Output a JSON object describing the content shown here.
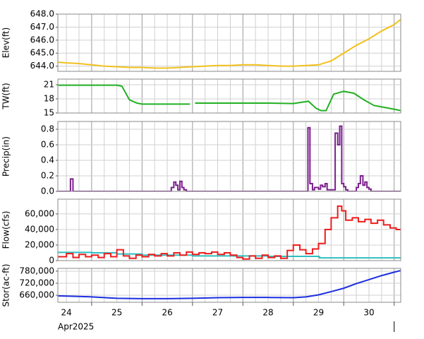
{
  "x_axis": {
    "xlim": [
      24.33,
      31.13
    ],
    "xticks": [
      {
        "value": 24.5,
        "label": "24"
      },
      {
        "value": 25.5,
        "label": "25"
      },
      {
        "value": 26.5,
        "label": "26"
      },
      {
        "value": 27.5,
        "label": "27"
      },
      {
        "value": 28.5,
        "label": "28"
      },
      {
        "value": 29.5,
        "label": "29"
      },
      {
        "value": 30.5,
        "label": "30"
      }
    ],
    "label": "Apr2025",
    "xgrid_major": [
      25,
      26,
      27,
      28,
      29,
      30,
      31
    ],
    "xgrid_minor": [
      24.5,
      24.75,
      25.25,
      25.5,
      25.75,
      26.25,
      26.5,
      26.75,
      27.25,
      27.5,
      27.75,
      28.25,
      28.5,
      28.75,
      29.25,
      29.5,
      29.75,
      30.25,
      30.5,
      30.75
    ]
  },
  "chart_data": [
    {
      "type": "line",
      "ylabel": "Elev(ft)",
      "ylim": [
        643.6,
        648.0
      ],
      "yticks": [
        {
          "value": 644,
          "label": "644.0"
        },
        {
          "value": 645,
          "label": "645.0"
        },
        {
          "value": 646,
          "label": "646.0"
        },
        {
          "value": 647,
          "label": "647.0"
        },
        {
          "value": 648,
          "label": "648.0"
        }
      ],
      "series": [
        {
          "color": "#f2c01e",
          "x": [
            24.33,
            24.5,
            24.75,
            25,
            25.25,
            25.5,
            25.75,
            26,
            26.25,
            26.5,
            26.75,
            27,
            27.25,
            27.5,
            27.75,
            28,
            28.25,
            28.5,
            28.75,
            29,
            29.25,
            29.5,
            29.75,
            30,
            30.25,
            30.5,
            30.75,
            31,
            31.13
          ],
          "values": [
            644.3,
            644.25,
            644.2,
            644.1,
            644.0,
            643.95,
            643.9,
            643.9,
            643.85,
            643.85,
            643.9,
            643.95,
            644.0,
            644.05,
            644.05,
            644.1,
            644.1,
            644.05,
            644.0,
            644.0,
            644.05,
            644.1,
            644.4,
            645.0,
            645.6,
            646.1,
            646.7,
            647.2,
            647.6
          ]
        }
      ]
    },
    {
      "type": "line",
      "ylabel": "TW(ft)",
      "ylim": [
        15,
        22.2
      ],
      "yticks": [
        15,
        18,
        21
      ],
      "series": [
        {
          "color": "#22b022",
          "x": [
            24.33,
            25,
            25.5,
            25.6,
            25.75,
            25.9,
            26,
            26.5,
            26.95,
            27.0,
            27.05,
            27.5,
            28,
            28.5,
            29,
            29.3,
            29.45,
            29.55,
            29.65,
            29.8,
            30.0,
            30.2,
            30.4,
            30.6,
            30.8,
            31.0,
            31.13
          ],
          "values": [
            20.9,
            20.9,
            20.9,
            20.7,
            17.8,
            17.1,
            16.9,
            16.9,
            16.9,
            null,
            17.1,
            17.1,
            17.1,
            17.1,
            17.0,
            17.5,
            16.0,
            15.5,
            15.5,
            19.0,
            19.6,
            19.2,
            17.8,
            16.6,
            16.2,
            15.8,
            15.5
          ]
        }
      ]
    },
    {
      "type": "step",
      "ylabel": "Precip(in)",
      "ylim": [
        0,
        0.9
      ],
      "yticks": [
        {
          "value": 0,
          "label": "0.0"
        },
        0.2,
        0.4,
        0.6,
        0.8
      ],
      "series": [
        {
          "color": "#7b1f8c",
          "x": [
            24.33,
            24.58,
            24.63,
            26.58,
            26.63,
            26.67,
            26.71,
            26.75,
            26.79,
            26.83,
            26.88,
            29.29,
            29.33,
            29.38,
            29.42,
            29.5,
            29.54,
            29.58,
            29.63,
            29.67,
            29.83,
            29.88,
            29.92,
            29.96,
            30.0,
            30.04,
            30.08,
            30.25,
            30.29,
            30.33,
            30.38,
            30.42,
            30.46,
            30.5,
            30.54,
            30.58,
            31.13
          ],
          "values": [
            0,
            0.16,
            0,
            0.05,
            0.12,
            0.08,
            0.02,
            0.13,
            0.05,
            0.02,
            0,
            0.82,
            0.1,
            0.02,
            0.05,
            0.03,
            0.08,
            0.06,
            0.1,
            0.02,
            0.75,
            0.6,
            0.84,
            0.1,
            0.06,
            0.02,
            0,
            0.05,
            0.1,
            0.2,
            0.08,
            0.12,
            0.05,
            0.03,
            0,
            0,
            0
          ]
        }
      ]
    },
    {
      "type": "step",
      "ylabel": "Flow(cfs)",
      "ylim": [
        0,
        79000
      ],
      "yticks": [
        0,
        {
          "value": 20000,
          "label": "20,000"
        },
        {
          "value": 40000,
          "label": "40,000"
        },
        {
          "value": 60000,
          "label": "60,000"
        }
      ],
      "series": [
        {
          "color": "#2fbfbf",
          "x": [
            24.33,
            25,
            25.5,
            26,
            27,
            28,
            28.5,
            29,
            29.5,
            29.52,
            31.13
          ],
          "values": [
            10500,
            10000,
            8500,
            7000,
            6000,
            6000,
            5500,
            5500,
            5000,
            3500,
            3500
          ]
        },
        {
          "color": "#ee1c1c",
          "x": [
            24.33,
            24.5,
            24.63,
            24.75,
            24.88,
            25,
            25.13,
            25.25,
            25.38,
            25.5,
            25.63,
            25.75,
            25.88,
            26,
            26.13,
            26.25,
            26.38,
            26.5,
            26.63,
            26.75,
            26.88,
            27,
            27.13,
            27.25,
            27.38,
            27.5,
            27.63,
            27.75,
            27.88,
            28,
            28.13,
            28.25,
            28.38,
            28.5,
            28.63,
            28.75,
            28.88,
            29,
            29.13,
            29.25,
            29.38,
            29.5,
            29.63,
            29.75,
            29.88,
            29.96,
            30.04,
            30.17,
            30.29,
            30.42,
            30.54,
            30.67,
            30.79,
            30.92,
            31.04,
            31.13
          ],
          "values": [
            5000,
            9000,
            4000,
            8000,
            5000,
            7000,
            4000,
            9000,
            5000,
            14000,
            6000,
            3000,
            7000,
            5000,
            8000,
            6000,
            9000,
            6000,
            10000,
            7000,
            11000,
            8000,
            10000,
            9000,
            11000,
            8000,
            10000,
            7000,
            4000,
            2000,
            6000,
            3000,
            7000,
            4000,
            6000,
            3000,
            13000,
            20000,
            14000,
            9000,
            15000,
            22000,
            40000,
            55000,
            70000,
            64000,
            52000,
            55000,
            50000,
            53000,
            48000,
            52000,
            46000,
            42000,
            40000,
            40000
          ]
        }
      ]
    },
    {
      "type": "line",
      "ylabel": "Stor(ac-ft)",
      "ylim": [
        625000,
        794000
      ],
      "yticks": [
        {
          "value": 660000,
          "label": "660,000"
        },
        {
          "value": 720000,
          "label": "720,000"
        },
        {
          "value": 780000,
          "label": "780,000"
        }
      ],
      "series": [
        {
          "color": "#1c2ee0",
          "x": [
            24.33,
            24.75,
            25,
            25.5,
            26,
            26.5,
            27,
            27.5,
            28,
            28.5,
            29,
            29.25,
            29.5,
            29.75,
            30,
            30.25,
            30.5,
            30.75,
            31,
            31.13
          ],
          "values": [
            657000,
            654000,
            652000,
            645000,
            643000,
            643000,
            645000,
            648000,
            649000,
            649000,
            648000,
            652000,
            662000,
            678000,
            695000,
            718000,
            738000,
            758000,
            775000,
            783000
          ]
        }
      ]
    }
  ]
}
